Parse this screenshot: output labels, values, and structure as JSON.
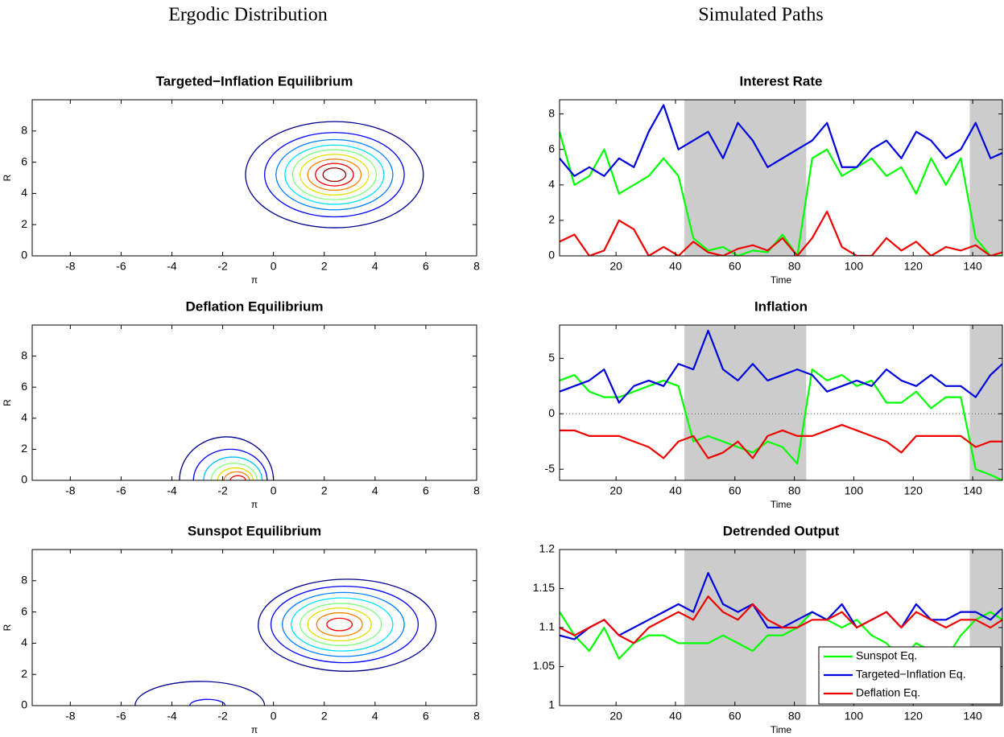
{
  "column_titles": [
    "Ergodic Distribution",
    "Simulated Paths"
  ],
  "chart_data": [
    {
      "type": "contour",
      "title": "Targeted−Inflation Equilibrium",
      "xlabel": "π",
      "ylabel": "R",
      "xlim": [
        -9.5,
        8
      ],
      "ylim": [
        0,
        10
      ],
      "xticks": [
        -8,
        -6,
        -4,
        -2,
        0,
        2,
        4,
        6,
        8
      ],
      "yticks": [
        0,
        2,
        4,
        6,
        8
      ],
      "contours": [
        {
          "color": "#00008f",
          "cx": 2.4,
          "cy": 5.2,
          "rx": 3.5,
          "ry": 3.4
        },
        {
          "color": "#0000ff",
          "cx": 2.4,
          "cy": 5.2,
          "rx": 2.75,
          "ry": 2.7
        },
        {
          "color": "#0080ff",
          "cx": 2.4,
          "cy": 5.2,
          "rx": 2.3,
          "ry": 2.25
        },
        {
          "color": "#00e0ff",
          "cx": 2.4,
          "cy": 5.2,
          "rx": 1.95,
          "ry": 1.9
        },
        {
          "color": "#80ff80",
          "cx": 2.4,
          "cy": 5.2,
          "rx": 1.65,
          "ry": 1.6
        },
        {
          "color": "#e0e000",
          "cx": 2.4,
          "cy": 5.2,
          "rx": 1.35,
          "ry": 1.3
        },
        {
          "color": "#ff8000",
          "cx": 2.4,
          "cy": 5.2,
          "rx": 1.05,
          "ry": 1.0
        },
        {
          "color": "#ff0000",
          "cx": 2.4,
          "cy": 5.2,
          "rx": 0.75,
          "ry": 0.72
        },
        {
          "color": "#8f0000",
          "cx": 2.4,
          "cy": 5.2,
          "rx": 0.45,
          "ry": 0.43
        }
      ]
    },
    {
      "type": "line",
      "title": "Interest Rate",
      "xlabel": "Time",
      "xlim": [
        1,
        150
      ],
      "ylim": [
        0,
        8.8
      ],
      "xticks": [
        20,
        40,
        60,
        80,
        100,
        120,
        140
      ],
      "yticks": [
        0,
        2,
        4,
        6,
        8
      ],
      "shaded": [
        [
          43,
          84
        ],
        [
          139,
          150
        ]
      ],
      "x": [
        1,
        6,
        11,
        16,
        21,
        26,
        31,
        36,
        41,
        46,
        51,
        56,
        61,
        66,
        71,
        76,
        81,
        86,
        91,
        96,
        101,
        106,
        111,
        116,
        121,
        126,
        131,
        136,
        141,
        146,
        150
      ],
      "series": [
        {
          "color": "#00ff00",
          "values": [
            7.0,
            4.0,
            4.5,
            6.0,
            3.5,
            4.0,
            4.5,
            5.5,
            4.5,
            1.0,
            0.3,
            0.5,
            0.0,
            0.3,
            0.2,
            1.2,
            0.0,
            5.5,
            6.0,
            4.5,
            5.0,
            5.5,
            4.5,
            5.0,
            3.5,
            5.5,
            4.0,
            5.5,
            1.0,
            0.0,
            0.0
          ]
        },
        {
          "color": "#0000dd",
          "values": [
            5.5,
            4.5,
            5.0,
            4.5,
            5.5,
            5.0,
            7.0,
            8.5,
            6.0,
            6.5,
            7.0,
            5.5,
            7.5,
            6.5,
            5.0,
            5.5,
            6.0,
            6.5,
            7.5,
            5.0,
            5.0,
            6.0,
            6.5,
            5.5,
            7.0,
            6.5,
            5.5,
            6.0,
            7.5,
            5.5,
            5.8
          ]
        },
        {
          "color": "#ee0000",
          "values": [
            0.8,
            1.2,
            0.0,
            0.3,
            2.0,
            1.5,
            0.0,
            0.5,
            0.0,
            0.8,
            0.2,
            0.0,
            0.4,
            0.6,
            0.3,
            1.0,
            0.0,
            1.0,
            2.5,
            0.5,
            0.0,
            0.0,
            1.0,
            0.3,
            0.8,
            0.0,
            0.5,
            0.3,
            0.6,
            0.0,
            0.2
          ]
        }
      ]
    },
    {
      "type": "contour",
      "title": "Deflation Equilibrium",
      "xlabel": "π",
      "ylabel": "R",
      "xlim": [
        -9.5,
        8
      ],
      "ylim": [
        0,
        10
      ],
      "xticks": [
        -8,
        -6,
        -4,
        -2,
        0,
        2,
        4,
        6,
        8
      ],
      "yticks": [
        0,
        2,
        4,
        6,
        8
      ],
      "contours": [
        {
          "color": "#00008f",
          "cx": -1.85,
          "cy": 0,
          "rx": 1.85,
          "ry": 2.8
        },
        {
          "color": "#0000ff",
          "cx": -1.7,
          "cy": 0,
          "rx": 1.45,
          "ry": 2.0
        },
        {
          "color": "#00c0ff",
          "cx": -1.6,
          "cy": 0,
          "rx": 1.15,
          "ry": 1.5
        },
        {
          "color": "#80ff80",
          "cx": -1.55,
          "cy": 0,
          "rx": 0.9,
          "ry": 1.1
        },
        {
          "color": "#e0e000",
          "cx": -1.5,
          "cy": 0,
          "rx": 0.7,
          "ry": 0.8
        },
        {
          "color": "#ff8000",
          "cx": -1.45,
          "cy": 0,
          "rx": 0.5,
          "ry": 0.55
        },
        {
          "color": "#ff0000",
          "cx": -1.4,
          "cy": 0,
          "rx": 0.3,
          "ry": 0.3
        }
      ]
    },
    {
      "type": "line",
      "title": "Inflation",
      "xlabel": "Time",
      "xlim": [
        1,
        150
      ],
      "ylim": [
        -6,
        8
      ],
      "xticks": [
        20,
        40,
        60,
        80,
        100,
        120,
        140
      ],
      "yticks": [
        -5,
        0,
        5
      ],
      "shaded": [
        [
          43,
          84
        ],
        [
          139,
          150
        ]
      ],
      "reference_line": 0,
      "x": [
        1,
        6,
        11,
        16,
        21,
        26,
        31,
        36,
        41,
        46,
        51,
        56,
        61,
        66,
        71,
        76,
        81,
        86,
        91,
        96,
        101,
        106,
        111,
        116,
        121,
        126,
        131,
        136,
        141,
        146,
        150
      ],
      "series": [
        {
          "color": "#00ff00",
          "values": [
            3,
            3.5,
            2,
            1.5,
            1.5,
            2,
            2.5,
            3,
            2.5,
            -2.5,
            -2,
            -2.5,
            -3,
            -3.5,
            -2.5,
            -3,
            -4.5,
            4,
            3,
            3.5,
            2.5,
            3,
            1,
            1,
            2,
            0.5,
            1.5,
            1.5,
            -5,
            -5.5,
            -6
          ]
        },
        {
          "color": "#0000dd",
          "values": [
            2,
            2.5,
            3,
            4,
            1,
            2.5,
            3,
            2.5,
            4.5,
            4,
            7.5,
            4,
            3,
            4.5,
            3,
            3.5,
            4,
            3.5,
            2,
            2.5,
            3,
            2.5,
            4,
            3,
            2.5,
            3.5,
            2.5,
            2.5,
            1.5,
            3.5,
            4.5
          ]
        },
        {
          "color": "#ee0000",
          "values": [
            -1.5,
            -1.5,
            -2,
            -2,
            -2,
            -2.5,
            -3,
            -4,
            -2.5,
            -2,
            -4,
            -3.5,
            -2.5,
            -4,
            -2,
            -1.5,
            -2,
            -2,
            -1.5,
            -1,
            -1.5,
            -2,
            -2.5,
            -3.5,
            -2,
            -2,
            -2,
            -2,
            -3,
            -2.5,
            -2.5
          ]
        }
      ]
    },
    {
      "type": "contour",
      "title": "Sunspot Equilibrium",
      "xlabel": "π",
      "ylabel": "R",
      "xlim": [
        -9.5,
        8
      ],
      "ylim": [
        0,
        10
      ],
      "xticks": [
        -8,
        -6,
        -4,
        -2,
        0,
        2,
        4,
        6,
        8
      ],
      "yticks": [
        0,
        2,
        4,
        6,
        8
      ],
      "contours": [
        {
          "color": "#00008f",
          "cx": 2.9,
          "cy": 5.15,
          "rx": 3.5,
          "ry": 2.95
        },
        {
          "color": "#0000ff",
          "cx": 2.8,
          "cy": 5.2,
          "rx": 2.9,
          "ry": 2.45
        },
        {
          "color": "#0080ff",
          "cx": 2.75,
          "cy": 5.2,
          "rx": 2.4,
          "ry": 2.05
        },
        {
          "color": "#00e0ff",
          "cx": 2.7,
          "cy": 5.2,
          "rx": 2.0,
          "ry": 1.7
        },
        {
          "color": "#80ff80",
          "cx": 2.65,
          "cy": 5.2,
          "rx": 1.6,
          "ry": 1.35
        },
        {
          "color": "#e0e000",
          "cx": 2.6,
          "cy": 5.2,
          "rx": 1.25,
          "ry": 1.05
        },
        {
          "color": "#ff8000",
          "cx": 2.6,
          "cy": 5.2,
          "rx": 0.9,
          "ry": 0.75
        },
        {
          "color": "#ff0000",
          "cx": 2.6,
          "cy": 5.2,
          "rx": 0.5,
          "ry": 0.4
        },
        {
          "color": "#00008f",
          "cx": -2.9,
          "cy": 0,
          "rx": 2.55,
          "ry": 1.55
        },
        {
          "color": "#0000ff",
          "cx": -2.6,
          "cy": 0,
          "rx": 0.7,
          "ry": 0.4
        }
      ]
    },
    {
      "type": "line",
      "title": "Detrended Output",
      "xlabel": "Time",
      "legend": "lower right",
      "xlim": [
        1,
        150
      ],
      "ylim": [
        1,
        1.2
      ],
      "xticks": [
        20,
        40,
        60,
        80,
        100,
        120,
        140
      ],
      "yticks": [
        1,
        1.05,
        1.1,
        1.15,
        1.2
      ],
      "shaded": [
        [
          43,
          84
        ],
        [
          139,
          150
        ]
      ],
      "x": [
        1,
        6,
        11,
        16,
        21,
        26,
        31,
        36,
        41,
        46,
        51,
        56,
        61,
        66,
        71,
        76,
        81,
        86,
        91,
        96,
        101,
        106,
        111,
        116,
        121,
        126,
        131,
        136,
        141,
        146,
        150
      ],
      "series": [
        {
          "name": "Sunspot Eq.",
          "color": "#00ff00",
          "values": [
            1.12,
            1.09,
            1.07,
            1.1,
            1.06,
            1.08,
            1.09,
            1.09,
            1.08,
            1.08,
            1.08,
            1.09,
            1.08,
            1.07,
            1.09,
            1.09,
            1.1,
            1.12,
            1.11,
            1.1,
            1.11,
            1.09,
            1.08,
            1.06,
            1.08,
            1.07,
            1.06,
            1.09,
            1.11,
            1.12,
            1.11
          ]
        },
        {
          "name": "Targeted−Inflation Eq.",
          "color": "#0000dd",
          "values": [
            1.09,
            1.085,
            1.1,
            1.11,
            1.09,
            1.1,
            1.11,
            1.12,
            1.13,
            1.12,
            1.17,
            1.13,
            1.12,
            1.13,
            1.1,
            1.1,
            1.11,
            1.12,
            1.11,
            1.13,
            1.1,
            1.11,
            1.12,
            1.1,
            1.13,
            1.11,
            1.11,
            1.12,
            1.12,
            1.11,
            1.125
          ]
        },
        {
          "name": "Deflation Eq.",
          "color": "#ee0000",
          "values": [
            1.1,
            1.09,
            1.1,
            1.11,
            1.09,
            1.08,
            1.1,
            1.11,
            1.12,
            1.11,
            1.14,
            1.12,
            1.11,
            1.13,
            1.11,
            1.1,
            1.1,
            1.11,
            1.11,
            1.12,
            1.1,
            1.11,
            1.12,
            1.1,
            1.12,
            1.11,
            1.1,
            1.11,
            1.11,
            1.1,
            1.11
          ]
        }
      ]
    }
  ]
}
